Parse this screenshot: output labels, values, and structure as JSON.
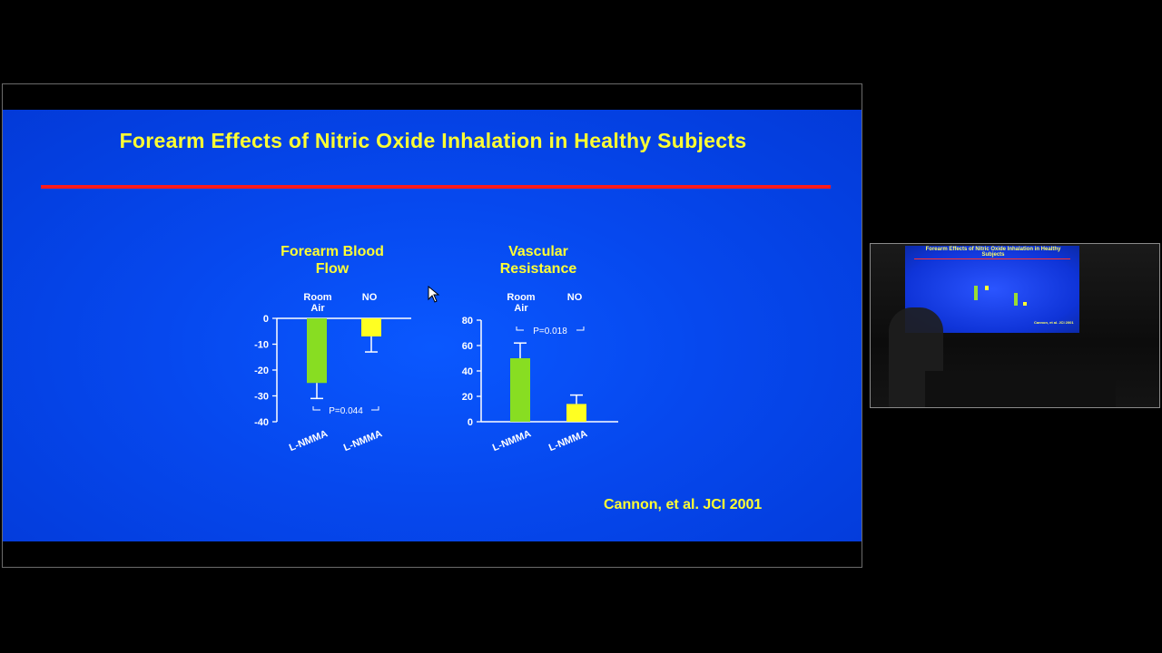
{
  "slide": {
    "title": "Forearm Effects of Nitric Oxide Inhalation in Healthy Subjects",
    "citation": "Cannon, et al. JCI 2001"
  },
  "chart_data": [
    {
      "type": "bar",
      "title_lines": [
        "Forearm Blood",
        "Flow"
      ],
      "group_labels": [
        [
          "Room",
          "Air"
        ],
        [
          "NO"
        ]
      ],
      "categories": [
        "L-NMMA",
        "L-NMMA"
      ],
      "values": [
        -25,
        -7
      ],
      "errors": [
        6,
        6
      ],
      "colors": [
        "#88dd22",
        "#ffff22"
      ],
      "ylim": [
        -40,
        0
      ],
      "ticks": [
        0,
        -10,
        -20,
        -30,
        -40
      ],
      "annotation": "P=0.044"
    },
    {
      "type": "bar",
      "title_lines": [
        "Vascular",
        "Resistance"
      ],
      "group_labels": [
        [
          "Room",
          "Air"
        ],
        [
          "NO"
        ]
      ],
      "categories": [
        "L-NMMA",
        "L-NMMA"
      ],
      "values": [
        50,
        14
      ],
      "errors": [
        12,
        7
      ],
      "colors": [
        "#88dd22",
        "#ffff22"
      ],
      "ylim": [
        0,
        80
      ],
      "ticks": [
        0,
        20,
        40,
        60,
        80
      ],
      "annotation": "P=0.018"
    }
  ],
  "nav": {
    "prev_icon": "arrow-left-icon",
    "pen_icon": "pen-icon",
    "menu_icon": "menu-icon",
    "next_icon": "arrow-right-icon"
  },
  "pip": {
    "title": "Forearm Effects of Nitric Oxide Inhalation in Healthy Subjects",
    "citation": "Cannon, et al. JCI 2001"
  }
}
